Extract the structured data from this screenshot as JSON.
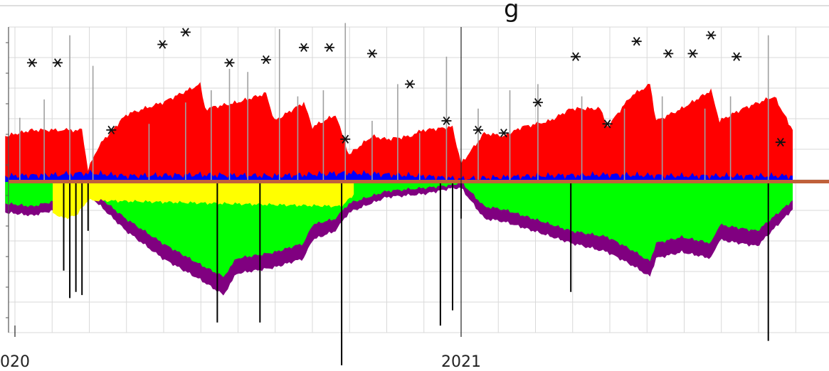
{
  "chart_data": {
    "type": "area",
    "title": "",
    "xlabel": "",
    "ylabel": "",
    "grid": true,
    "legend": "none",
    "x_axis": {
      "unit": "month",
      "range": [
        "2019-12-24",
        "2021-09-30"
      ],
      "tick_labels": [
        {
          "label": "020",
          "date": "2020-01-01"
        },
        {
          "label": "2021",
          "date": "2021-01-01"
        }
      ]
    },
    "y_range": [
      -2.5,
      2.5
    ],
    "series": [
      {
        "color": "#ff0000",
        "x": [
          "2019-12-24",
          "2020-01-15",
          "2020-02-05",
          "2020-02-25",
          "2020-03-01",
          "2020-03-10",
          "2020-04-01",
          "2020-05-01",
          "2020-06-01",
          "2020-06-05",
          "2020-07-01",
          "2020-07-25",
          "2020-08-01",
          "2020-08-25",
          "2020-09-01",
          "2020-09-20",
          "2020-10-01",
          "2020-10-20",
          "2020-11-01",
          "2020-11-20",
          "2020-12-01",
          "2020-12-25",
          "2021-01-01",
          "2021-01-20",
          "2021-02-05",
          "2021-02-20",
          "2021-03-15",
          "2021-04-01",
          "2021-04-25",
          "2021-05-01",
          "2021-05-20",
          "2021-06-05",
          "2021-06-10",
          "2021-07-01",
          "2021-07-25",
          "2021-08-01",
          "2021-08-20",
          "2021-09-15",
          "2021-09-30"
        ],
        "values": [
          0.75,
          0.85,
          0.85,
          0.85,
          0.2,
          0.6,
          1.1,
          1.3,
          1.6,
          1.2,
          1.3,
          1.45,
          1.0,
          1.3,
          0.9,
          1.1,
          0.45,
          0.75,
          0.7,
          0.75,
          0.85,
          0.9,
          0.3,
          0.8,
          0.75,
          0.9,
          1.0,
          1.2,
          1.2,
          0.9,
          1.4,
          1.6,
          1.0,
          1.2,
          1.5,
          1.0,
          1.2,
          1.4,
          0.85
        ]
      },
      {
        "color": "#00ff00",
        "x": [
          "2019-12-24",
          "2020-01-15",
          "2020-02-05",
          "2020-02-25",
          "2020-03-01",
          "2020-04-01",
          "2020-05-01",
          "2020-06-01",
          "2020-06-20",
          "2020-07-01",
          "2020-08-01",
          "2020-08-25",
          "2020-09-01",
          "2020-09-20",
          "2020-10-01",
          "2020-11-01",
          "2020-12-01",
          "2020-12-25",
          "2021-01-01",
          "2021-01-20",
          "2021-02-05",
          "2021-03-01",
          "2021-04-01",
          "2021-05-01",
          "2021-05-20",
          "2021-06-05",
          "2021-06-10",
          "2021-07-01",
          "2021-07-25",
          "2021-08-01",
          "2021-09-01",
          "2021-09-30"
        ],
        "values": [
          -0.35,
          -0.4,
          -0.3,
          -0.3,
          -0.1,
          -0.6,
          -1.0,
          -1.35,
          -1.55,
          -1.25,
          -1.15,
          -1.0,
          -0.7,
          -0.6,
          -0.35,
          -0.15,
          -0.1,
          -0.05,
          0,
          -0.4,
          -0.45,
          -0.6,
          -0.8,
          -0.9,
          -1.1,
          -1.3,
          -1.0,
          -0.9,
          -1.0,
          -0.7,
          -0.8,
          -0.3
        ]
      },
      {
        "color": "#800080",
        "x": [
          "2019-12-24",
          "2020-01-15",
          "2020-02-05",
          "2020-02-25",
          "2020-03-01",
          "2020-04-01",
          "2020-05-01",
          "2020-06-01",
          "2020-06-20",
          "2020-07-01",
          "2020-08-01",
          "2020-08-25",
          "2020-09-01",
          "2020-09-20",
          "2020-10-01",
          "2020-11-01",
          "2020-12-01",
          "2020-12-25",
          "2021-01-01",
          "2021-01-20",
          "2021-02-05",
          "2021-03-01",
          "2021-04-01",
          "2021-05-01",
          "2021-05-20",
          "2021-06-05",
          "2021-06-10",
          "2021-07-01",
          "2021-07-25",
          "2021-08-01",
          "2021-09-01",
          "2021-09-30"
        ],
        "values": [
          -0.5,
          -0.55,
          -0.45,
          -0.4,
          -0.2,
          -0.8,
          -1.25,
          -1.6,
          -1.85,
          -1.5,
          -1.4,
          -1.25,
          -0.95,
          -0.8,
          -0.5,
          -0.25,
          -0.2,
          -0.1,
          -0.1,
          -0.6,
          -0.65,
          -0.8,
          -1.0,
          -1.15,
          -1.35,
          -1.55,
          -1.25,
          -1.15,
          -1.25,
          -0.95,
          -1.05,
          -0.45
        ]
      },
      {
        "color": "#0000ff",
        "x": [
          "2019-12-24",
          "2020-02-05",
          "2020-03-01",
          "2020-04-01",
          "2020-06-01",
          "2020-08-01",
          "2020-10-01",
          "2020-12-01",
          "2021-01-01",
          "2021-03-01",
          "2021-05-01",
          "2021-07-01",
          "2021-09-30"
        ],
        "values": [
          0.1,
          0.12,
          0.15,
          0.1,
          0.12,
          0.1,
          0.15,
          0.1,
          0.05,
          0.1,
          0.12,
          0.1,
          0.1
        ]
      },
      {
        "color": "#ffff00",
        "x": [
          "2020-02-01",
          "2020-02-10",
          "2020-02-20",
          "2020-03-01",
          "2020-09-25",
          "2020-10-05"
        ],
        "values": [
          -0.5,
          -0.6,
          -0.55,
          -0.3,
          -0.4,
          -0.2
        ]
      },
      {
        "color": "#000000",
        "type": "spike",
        "x": [
          "2020-02-10",
          "2020-02-15",
          "2020-02-20",
          "2020-02-25",
          "2020-03-01",
          "2020-06-15",
          "2020-07-20",
          "2020-09-25",
          "2020-12-15",
          "2020-12-25",
          "2021-01-01",
          "2021-04-01",
          "2021-09-10"
        ],
        "values": [
          -1.45,
          -1.9,
          -1.8,
          -1.85,
          -0.8,
          -2.3,
          -2.3,
          -3.0,
          -2.35,
          -2.1,
          -0.6,
          -1.8,
          -2.6
        ]
      },
      {
        "color": "#a0a0a0",
        "type": "spike",
        "x": [
          "2020-01-05",
          "2020-01-25",
          "2020-02-15",
          "2020-03-05",
          "2020-04-20",
          "2020-05-20",
          "2020-06-10",
          "2020-06-25",
          "2020-07-10",
          "2020-08-05",
          "2020-08-20",
          "2020-09-10",
          "2020-09-28",
          "2020-10-20",
          "2020-11-10",
          "2020-11-28",
          "2020-12-20",
          "2021-01-15",
          "2021-02-10",
          "2021-03-05",
          "2021-04-10",
          "2021-05-15",
          "2021-06-15",
          "2021-07-20",
          "2021-08-10",
          "2021-09-10"
        ],
        "values": [
          1.05,
          1.35,
          2.4,
          1.9,
          0.95,
          1.3,
          1.5,
          1.85,
          1.8,
          2.5,
          1.4,
          1.5,
          2.6,
          1.0,
          1.6,
          0.8,
          2.05,
          1.2,
          1.5,
          1.6,
          1.4,
          1.2,
          1.4,
          1.2,
          1.4,
          2.4
        ]
      },
      {
        "type": "scatter",
        "marker": "asterisk",
        "color": "#111111",
        "x": [
          "2020-01-15",
          "2020-02-05",
          "2020-03-20",
          "2020-05-01",
          "2020-05-20",
          "2020-06-25",
          "2020-07-25",
          "2020-08-25",
          "2020-09-15",
          "2020-09-28",
          "2020-10-20",
          "2020-11-20",
          "2020-12-20",
          "2021-01-15",
          "2021-02-05",
          "2021-03-05",
          "2021-04-05",
          "2021-05-01",
          "2021-05-25",
          "2021-06-20",
          "2021-07-10",
          "2021-07-25",
          "2021-08-15",
          "2021-09-20"
        ],
        "values": [
          1.95,
          1.95,
          0.85,
          2.25,
          2.45,
          1.95,
          2.0,
          2.2,
          2.2,
          0.7,
          2.1,
          1.6,
          1.0,
          0.85,
          0.8,
          1.3,
          2.05,
          0.95,
          2.3,
          2.1,
          2.1,
          2.4,
          2.05,
          0.65
        ]
      }
    ]
  },
  "peek_title": "g"
}
